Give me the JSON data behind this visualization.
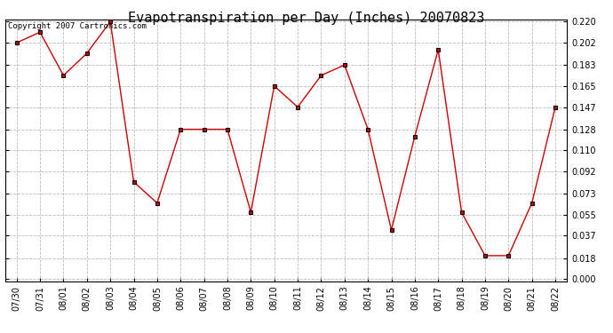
{
  "title": "Evapotranspiration per Day (Inches) 20070823",
  "copyright_text": "Copyright 2007 Cartronics.com",
  "dates": [
    "07/30",
    "07/31",
    "08/01",
    "08/02",
    "08/03",
    "08/04",
    "08/05",
    "08/06",
    "08/07",
    "08/08",
    "08/09",
    "08/10",
    "08/11",
    "08/12",
    "08/13",
    "08/14",
    "08/15",
    "08/16",
    "08/17",
    "08/18",
    "08/19",
    "08/20",
    "08/21",
    "08/22"
  ],
  "values": [
    0.202,
    0.211,
    0.174,
    0.193,
    0.22,
    0.083,
    0.065,
    0.128,
    0.128,
    0.128,
    0.057,
    0.165,
    0.147,
    0.174,
    0.183,
    0.128,
    0.042,
    0.122,
    0.196,
    0.057,
    0.02,
    0.02,
    0.065,
    0.147
  ],
  "yticks": [
    0.0,
    0.018,
    0.037,
    0.055,
    0.073,
    0.092,
    0.11,
    0.128,
    0.147,
    0.165,
    0.183,
    0.202,
    0.22
  ],
  "ylim": [
    0.0,
    0.22
  ],
  "line_color": "#cc0000",
  "marker": "s",
  "marker_size": 2.5,
  "marker_edge_width": 0.8,
  "background_color": "#ffffff",
  "grid_color": "#bbbbbb",
  "title_fontsize": 11,
  "tick_fontsize": 7,
  "copyright_fontsize": 6.5,
  "linewidth": 1.0
}
